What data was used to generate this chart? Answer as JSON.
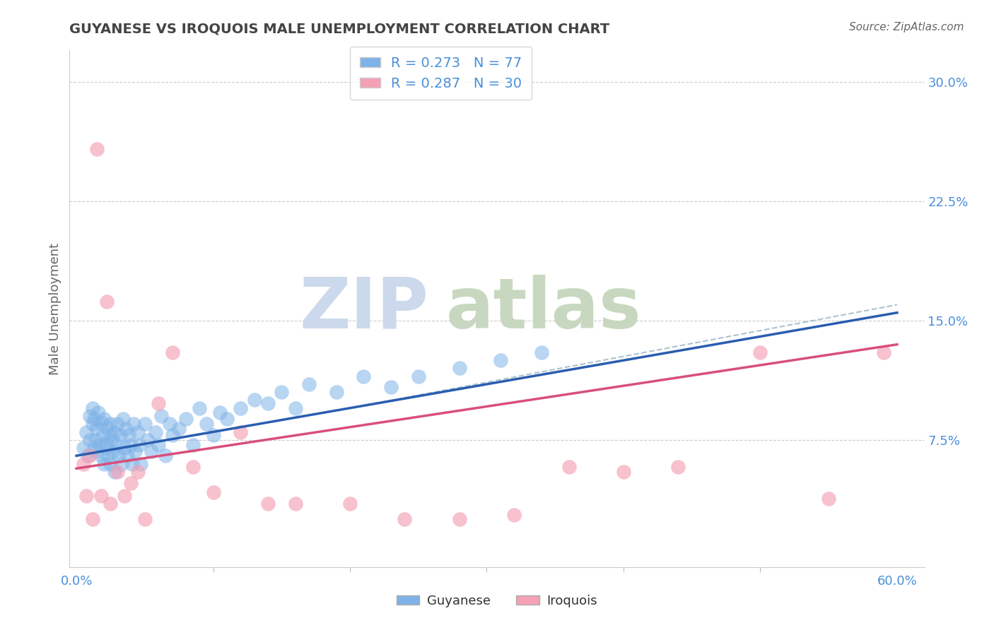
{
  "title": "GUYANESE VS IROQUOIS MALE UNEMPLOYMENT CORRELATION CHART",
  "source_text": "Source: ZipAtlas.com",
  "ylabel": "Male Unemployment",
  "xlim": [
    -0.005,
    0.62
  ],
  "ylim": [
    -0.005,
    0.32
  ],
  "xticks": [
    0.0,
    0.6
  ],
  "xticklabels": [
    "0.0%",
    "60.0%"
  ],
  "yticks_right": [
    0.075,
    0.15,
    0.225,
    0.3
  ],
  "yticklabels_right": [
    "7.5%",
    "15.0%",
    "22.5%",
    "30.0%"
  ],
  "guyanese_color": "#7fb3e8",
  "iroquois_color": "#f4a0b5",
  "trend_blue_color": "#2a5db0",
  "trend_pink_color": "#d94f7a",
  "trend_dashed_color": "#99ccaa",
  "legend_r1": "R = 0.273",
  "legend_n1": "N = 77",
  "legend_r2": "R = 0.287",
  "legend_n2": "N = 30",
  "guyanese_x": [
    0.005,
    0.007,
    0.008,
    0.01,
    0.01,
    0.012,
    0.012,
    0.013,
    0.013,
    0.014,
    0.015,
    0.015,
    0.016,
    0.017,
    0.018,
    0.018,
    0.019,
    0.02,
    0.02,
    0.021,
    0.022,
    0.022,
    0.023,
    0.024,
    0.025,
    0.025,
    0.026,
    0.027,
    0.028,
    0.028,
    0.03,
    0.03,
    0.031,
    0.032,
    0.033,
    0.034,
    0.035,
    0.036,
    0.037,
    0.038,
    0.04,
    0.041,
    0.042,
    0.043,
    0.045,
    0.046,
    0.047,
    0.05,
    0.052,
    0.055,
    0.058,
    0.06,
    0.062,
    0.065,
    0.068,
    0.07,
    0.075,
    0.08,
    0.085,
    0.09,
    0.095,
    0.1,
    0.105,
    0.11,
    0.12,
    0.13,
    0.14,
    0.15,
    0.16,
    0.17,
    0.19,
    0.21,
    0.23,
    0.25,
    0.28,
    0.31,
    0.34
  ],
  "guyanese_y": [
    0.07,
    0.08,
    0.065,
    0.09,
    0.075,
    0.085,
    0.095,
    0.07,
    0.088,
    0.075,
    0.068,
    0.082,
    0.092,
    0.072,
    0.086,
    0.065,
    0.078,
    0.088,
    0.06,
    0.073,
    0.083,
    0.07,
    0.065,
    0.078,
    0.085,
    0.06,
    0.075,
    0.068,
    0.08,
    0.055,
    0.072,
    0.085,
    0.065,
    0.078,
    0.06,
    0.088,
    0.07,
    0.082,
    0.065,
    0.078,
    0.072,
    0.06,
    0.085,
    0.068,
    0.08,
    0.072,
    0.06,
    0.085,
    0.075,
    0.068,
    0.08,
    0.072,
    0.09,
    0.065,
    0.085,
    0.078,
    0.082,
    0.088,
    0.072,
    0.095,
    0.085,
    0.078,
    0.092,
    0.088,
    0.095,
    0.1,
    0.098,
    0.105,
    0.095,
    0.11,
    0.105,
    0.115,
    0.108,
    0.115,
    0.12,
    0.125,
    0.13
  ],
  "iroquois_x": [
    0.005,
    0.007,
    0.01,
    0.012,
    0.015,
    0.018,
    0.022,
    0.025,
    0.03,
    0.035,
    0.04,
    0.045,
    0.05,
    0.06,
    0.07,
    0.085,
    0.1,
    0.12,
    0.14,
    0.16,
    0.2,
    0.24,
    0.28,
    0.32,
    0.36,
    0.4,
    0.44,
    0.5,
    0.55,
    0.59
  ],
  "iroquois_y": [
    0.06,
    0.04,
    0.065,
    0.025,
    0.258,
    0.04,
    0.162,
    0.035,
    0.055,
    0.04,
    0.048,
    0.055,
    0.025,
    0.098,
    0.13,
    0.058,
    0.042,
    0.08,
    0.035,
    0.035,
    0.035,
    0.025,
    0.025,
    0.028,
    0.058,
    0.055,
    0.058,
    0.13,
    0.038,
    0.13
  ],
  "trend_blue_x0": 0.0,
  "trend_blue_y0": 0.065,
  "trend_blue_x1": 0.6,
  "trend_blue_y1": 0.155,
  "trend_pink_x0": 0.0,
  "trend_pink_y0": 0.057,
  "trend_pink_x1": 0.6,
  "trend_pink_y1": 0.135,
  "trend_dash_x0": 0.2,
  "trend_dash_y0": 0.095,
  "trend_dash_x1": 0.6,
  "trend_dash_y1": 0.16
}
